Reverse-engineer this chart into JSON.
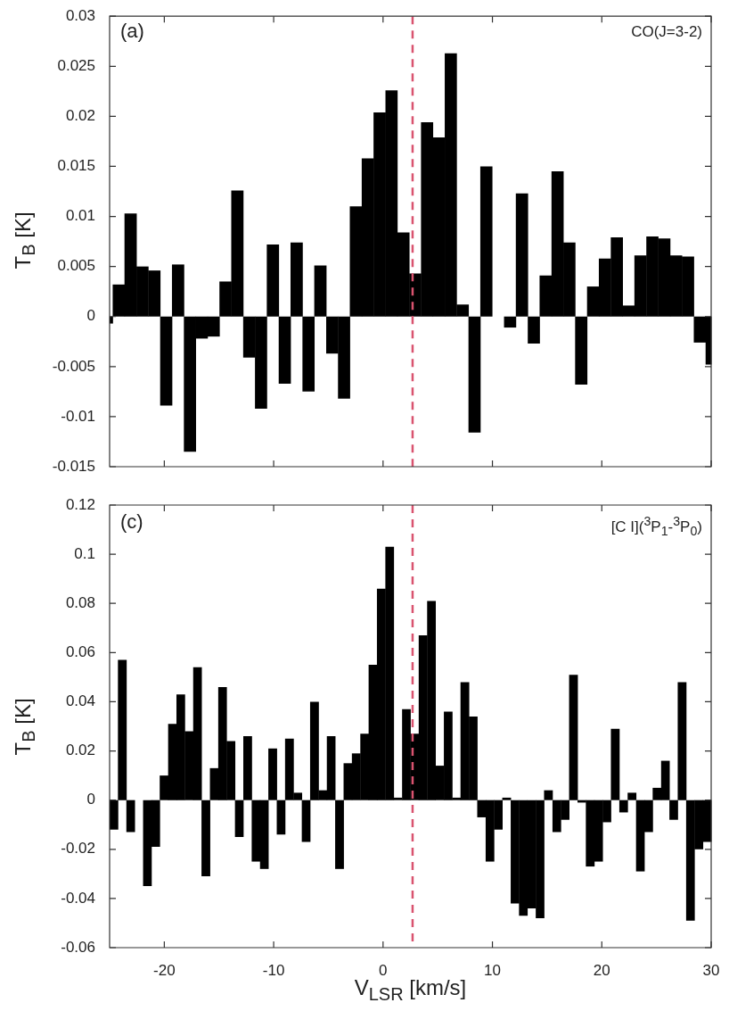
{
  "chart_data": [
    {
      "type": "histogram",
      "color": "#000000",
      "xlim": [
        -25,
        30
      ],
      "xticks": [
        -20,
        -10,
        0,
        10,
        20,
        30
      ],
      "ylim": [
        -0.015,
        0.03
      ],
      "yticks": [
        -0.015,
        -0.01,
        -0.005,
        0,
        0.005,
        0.01,
        0.015,
        0.02,
        0.025,
        0.03
      ],
      "ylabel": "T$_{B}$ [K]",
      "tick_labels": "y",
      "annotations": [
        "(a)",
        "CO(J=3-2)"
      ],
      "ref_lines": [
        {
          "axis": "x",
          "value": 2.7,
          "color": "#d9536f",
          "line_style": "dashed"
        }
      ],
      "bins": [
        -25,
        -24.72,
        -23.64,
        -22.55,
        -21.47,
        -20.38,
        -19.3,
        -18.21,
        -17.13,
        -16.05,
        -14.96,
        -13.88,
        -12.79,
        -11.71,
        -10.63,
        -9.54,
        -8.46,
        -7.37,
        -6.29,
        -5.2,
        -4.12,
        -3.04,
        -1.95,
        -0.87,
        0.22,
        1.3,
        2.39,
        3.47,
        4.55,
        5.64,
        6.72,
        7.81,
        8.89,
        9.97,
        11.06,
        12.14,
        13.23,
        14.31,
        15.4,
        16.48,
        17.56,
        18.65,
        19.73,
        20.82,
        21.9,
        22.98,
        24.07,
        25.15,
        26.24,
        27.32,
        28.41,
        29.49,
        30
      ],
      "values": [
        -0.0007,
        0.0032,
        0.0103,
        0.005,
        0.0046,
        -0.0089,
        0.0052,
        -0.0135,
        -0.0022,
        -0.002,
        0.0035,
        0.0126,
        -0.0041,
        -0.0092,
        0.0072,
        -0.0067,
        0.0074,
        -0.0075,
        0.0051,
        -0.0037,
        -0.0082,
        0.011,
        0.0158,
        0.0204,
        0.0226,
        0.0084,
        0.0043,
        0.0194,
        0.0179,
        0.0263,
        0.0012,
        -0.0116,
        0.015,
        0.0,
        -0.0011,
        0.0123,
        -0.0027,
        0.0041,
        0.0145,
        0.0074,
        -0.0068,
        0.003,
        0.0058,
        0.0079,
        0.0011,
        0.0061,
        0.008,
        0.0078,
        0.0061,
        0.006,
        -0.0026,
        -0.0048
      ]
    },
    {
      "type": "histogram",
      "color": "#000000",
      "xlim": [
        -25,
        30
      ],
      "xticks": [
        -20,
        -10,
        0,
        10,
        20,
        30
      ],
      "ylim": [
        -0.06,
        0.12
      ],
      "yticks": [
        -0.06,
        -0.04,
        -0.02,
        0,
        0.02,
        0.04,
        0.06,
        0.08,
        0.1,
        0.12
      ],
      "ylabel": "T$_{B}$ [K]",
      "xlabel": "V$_{LSR}$ [km/s]",
      "annotations": [
        "(c)",
        "[C I]($^{3}$P$_{1}$-$^{3}$P$_{0}$)"
      ],
      "ref_lines": [
        {
          "axis": "x",
          "value": 2.7,
          "color": "#d9536f",
          "line_style": "dashed"
        }
      ],
      "bins": [
        -25.0,
        -24.24,
        -23.47,
        -22.71,
        -21.94,
        -21.18,
        -20.42,
        -19.65,
        -18.89,
        -18.13,
        -17.36,
        -16.6,
        -15.83,
        -15.07,
        -14.31,
        -13.54,
        -12.78,
        -12.01,
        -11.25,
        -10.49,
        -9.72,
        -8.96,
        -8.19,
        -7.43,
        -6.67,
        -5.9,
        -5.14,
        -4.38,
        -3.61,
        -2.85,
        -2.08,
        -1.32,
        -0.56,
        0.21,
        0.97,
        1.74,
        2.5,
        3.26,
        4.03,
        4.79,
        5.56,
        6.32,
        7.08,
        7.85,
        8.61,
        9.38,
        10.14,
        10.9,
        11.67,
        12.43,
        13.19,
        13.96,
        14.72,
        15.49,
        16.25,
        17.01,
        17.78,
        18.54,
        19.31,
        20.07,
        20.83,
        21.6,
        22.36,
        23.13,
        23.89,
        24.65,
        25.42,
        26.18,
        26.94,
        27.71,
        28.47,
        29.24,
        30.0
      ],
      "values": [
        -0.012,
        0.057,
        -0.013,
        0.0,
        -0.035,
        -0.019,
        0.01,
        0.031,
        0.043,
        0.028,
        0.054,
        -0.031,
        0.013,
        0.046,
        0.024,
        -0.015,
        0.026,
        -0.025,
        -0.028,
        0.021,
        -0.014,
        0.025,
        0.003,
        -0.017,
        0.04,
        0.004,
        0.026,
        -0.028,
        0.015,
        0.019,
        0.027,
        0.055,
        0.086,
        0.103,
        0.001,
        0.037,
        0.027,
        0.067,
        0.081,
        0.014,
        0.036,
        0.001,
        0.048,
        0.034,
        -0.007,
        -0.025,
        -0.012,
        0.001,
        -0.042,
        -0.047,
        -0.044,
        -0.048,
        0.004,
        -0.013,
        -0.008,
        0.051,
        -0.001,
        -0.027,
        -0.025,
        -0.009,
        0.029,
        -0.005,
        0.003,
        -0.029,
        -0.013,
        0.005,
        0.016,
        -0.008,
        0.048,
        -0.049,
        -0.02,
        -0.017
      ]
    }
  ]
}
